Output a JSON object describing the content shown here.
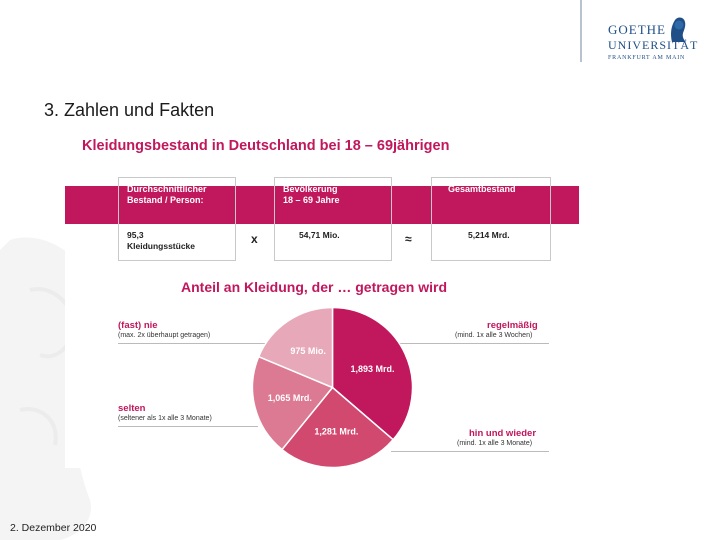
{
  "header": {
    "logo": {
      "line1": "GOETHE",
      "line2": "UNIVERSITÄT",
      "line3": "FRANKFURT AM MAIN"
    }
  },
  "slide": {
    "title": "3. Zahlen und Fakten",
    "footer_date": "2. Dezember 2020"
  },
  "figure": {
    "title": "Kleidungsbestand in Deutschland bei 18 – 69jährigen",
    "boxes": [
      {
        "label_line1": "Durchschnittlicher",
        "label_line2": "Bestand / Person:",
        "value_line1": "95,3",
        "value_line2": "Kleidungsstücke"
      },
      {
        "label_line1": "Bevölkerung",
        "label_line2": "18 – 69 Jahre",
        "value_line1": "54,71 Mio.",
        "value_line2": ""
      },
      {
        "label_line1": "Gesamtbestand",
        "label_line2": "",
        "value_line1": "5,214 Mrd.",
        "value_line2": ""
      }
    ],
    "operators": {
      "multiply": "x",
      "approx": "≈"
    },
    "pie_title": "Anteil an Kleidung, der … getragen wird",
    "legend": {
      "nie": {
        "title": "(fast) nie",
        "subtitle": "(max. 2x überhaupt getragen)"
      },
      "selten": {
        "title": "selten",
        "subtitle": "(seltener als 1x alle 3 Monate)"
      },
      "regelmaessig": {
        "title": "regelmäßig",
        "subtitle": "(mind. 1x alle 3 Wochen)"
      },
      "hin_und_wieder": {
        "title": "hin und wieder",
        "subtitle": "(mind. 1x alle 3 Monate)"
      }
    }
  },
  "chart_data": {
    "type": "pie",
    "title": "Anteil an Kleidung, der … getragen wird",
    "slices": [
      {
        "label": "1,893 Mrd.",
        "value": 1.893,
        "color": "#c0175d"
      },
      {
        "label": "1,281 Mrd.",
        "value": 1.281,
        "color": "#d2496f"
      },
      {
        "label": "1,065 Mrd.",
        "value": 1.065,
        "color": "#dd7a93"
      },
      {
        "label": "975 Mio.",
        "value": 0.975,
        "color": "#e7a9b9"
      }
    ]
  },
  "colors": {
    "accent": "#c0175d",
    "logo_blue": "#1f4f86"
  }
}
